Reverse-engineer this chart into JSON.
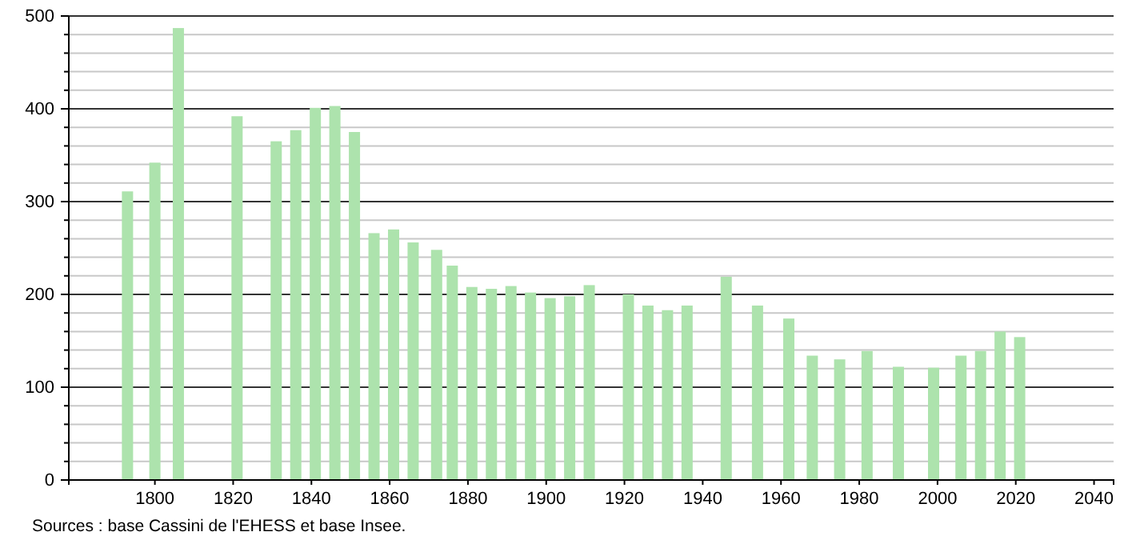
{
  "chart_data": {
    "type": "bar",
    "x": [
      1793,
      1800,
      1806,
      1821,
      1831,
      1836,
      1841,
      1846,
      1851,
      1856,
      1861,
      1866,
      1872,
      1876,
      1881,
      1886,
      1891,
      1896,
      1901,
      1906,
      1911,
      1921,
      1926,
      1931,
      1936,
      1946,
      1954,
      1962,
      1968,
      1975,
      1982,
      1990,
      1999,
      2006,
      2011,
      2016,
      2021
    ],
    "values": [
      311,
      342,
      487,
      392,
      365,
      377,
      401,
      403,
      375,
      266,
      270,
      256,
      248,
      231,
      208,
      206,
      209,
      202,
      196,
      198,
      210,
      200,
      188,
      183,
      188,
      219,
      188,
      174,
      134,
      130,
      139,
      122,
      121,
      134,
      139,
      160,
      154
    ],
    "color": "#ade3ad",
    "xlim": [
      1778,
      2045
    ],
    "xticks": [
      1800,
      1820,
      1840,
      1860,
      1880,
      1900,
      1920,
      1940,
      1960,
      1980,
      2000,
      2020,
      2040
    ],
    "ylim": [
      0,
      500
    ],
    "yticks": [
      0,
      {
        "value": 20,
        "label": null
      },
      {
        "value": 40,
        "label": null
      },
      {
        "value": 60,
        "label": null
      },
      {
        "value": 80,
        "label": null
      },
      100,
      {
        "value": 120,
        "label": null
      },
      {
        "value": 140,
        "label": null
      },
      {
        "value": 160,
        "label": null
      },
      {
        "value": 180,
        "label": null
      },
      200,
      {
        "value": 220,
        "label": null
      },
      {
        "value": 240,
        "label": null
      },
      {
        "value": 260,
        "label": null
      },
      {
        "value": 280,
        "label": null
      },
      300,
      {
        "value": 320,
        "label": null
      },
      {
        "value": 340,
        "label": null
      },
      {
        "value": 360,
        "label": null
      },
      {
        "value": 380,
        "label": null
      },
      400,
      {
        "value": 420,
        "label": null
      },
      {
        "value": 440,
        "label": null
      },
      {
        "value": 460,
        "label": null
      },
      {
        "value": 480,
        "label": null
      },
      500
    ],
    "grid": "y",
    "annotations": [
      "Sources : base Cassini de l'EHESS et base Insee."
    ]
  }
}
